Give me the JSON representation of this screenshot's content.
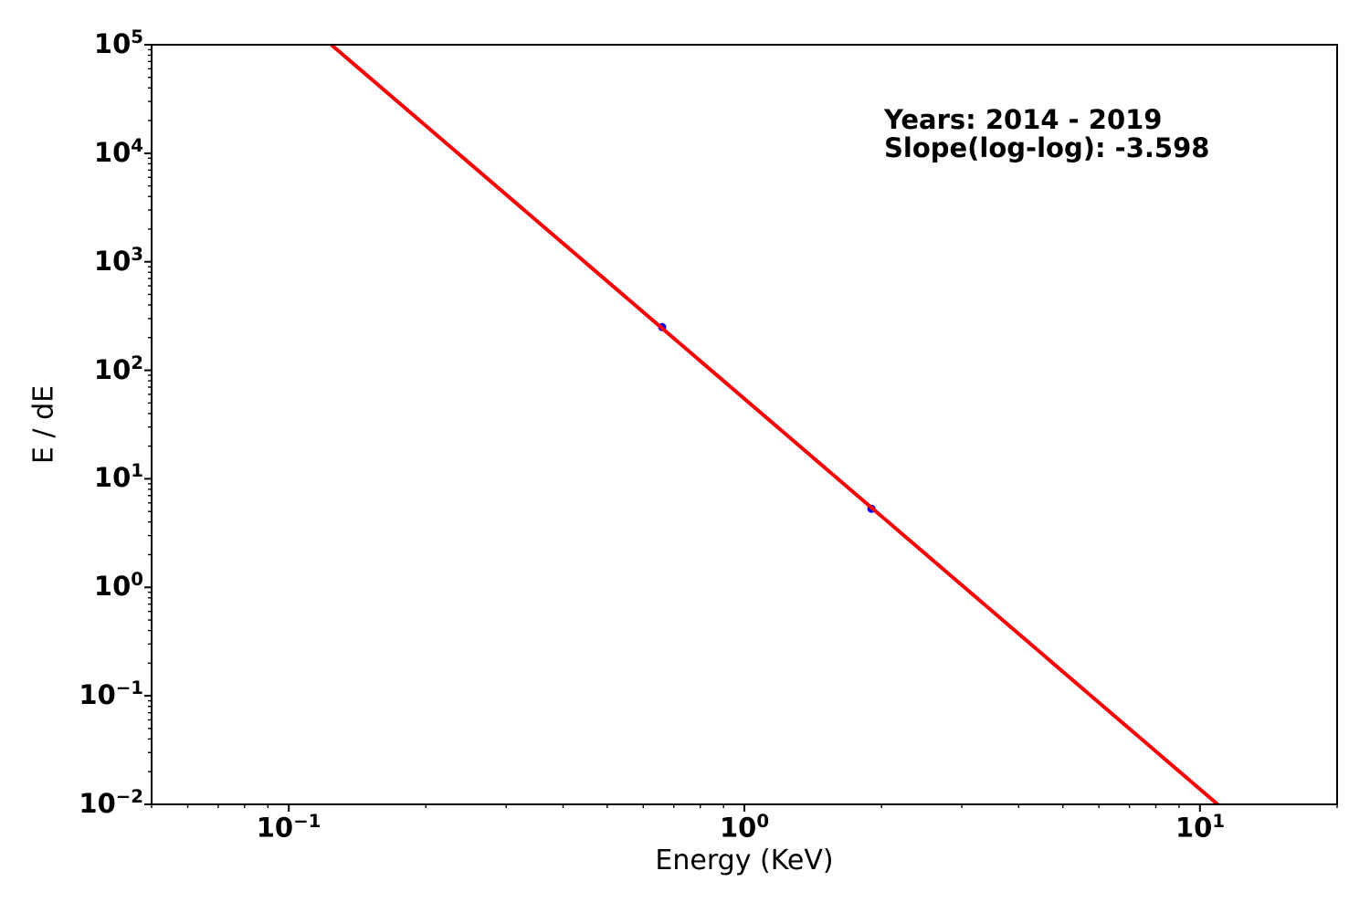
{
  "chart_data": {
    "type": "scatter",
    "title": "",
    "xlabel": "Energy (KeV)",
    "ylabel": "E / dE",
    "xscale": "log",
    "yscale": "log",
    "xlim": [
      0.05,
      20
    ],
    "ylim": [
      0.01,
      100000
    ],
    "x_major_ticks": [
      0.1,
      1,
      10
    ],
    "y_major_ticks": [
      0.01,
      0.1,
      1,
      10,
      100,
      1000,
      10000,
      100000
    ],
    "grid": false,
    "legend": "none",
    "points": [
      {
        "x": 0.66,
        "y": 250
      },
      {
        "x": 1.9,
        "y": 5.3
      }
    ],
    "point_color": "#0000ff",
    "fit_line": {
      "slope": -3.598,
      "intercept_log10": 1.738,
      "color": "#ff0000"
    },
    "annotation": {
      "lines": [
        "Years: 2014 - 2019",
        "Slope(log-log): -3.598"
      ]
    },
    "axis_color": "#000000",
    "background_color": "#ffffff"
  }
}
